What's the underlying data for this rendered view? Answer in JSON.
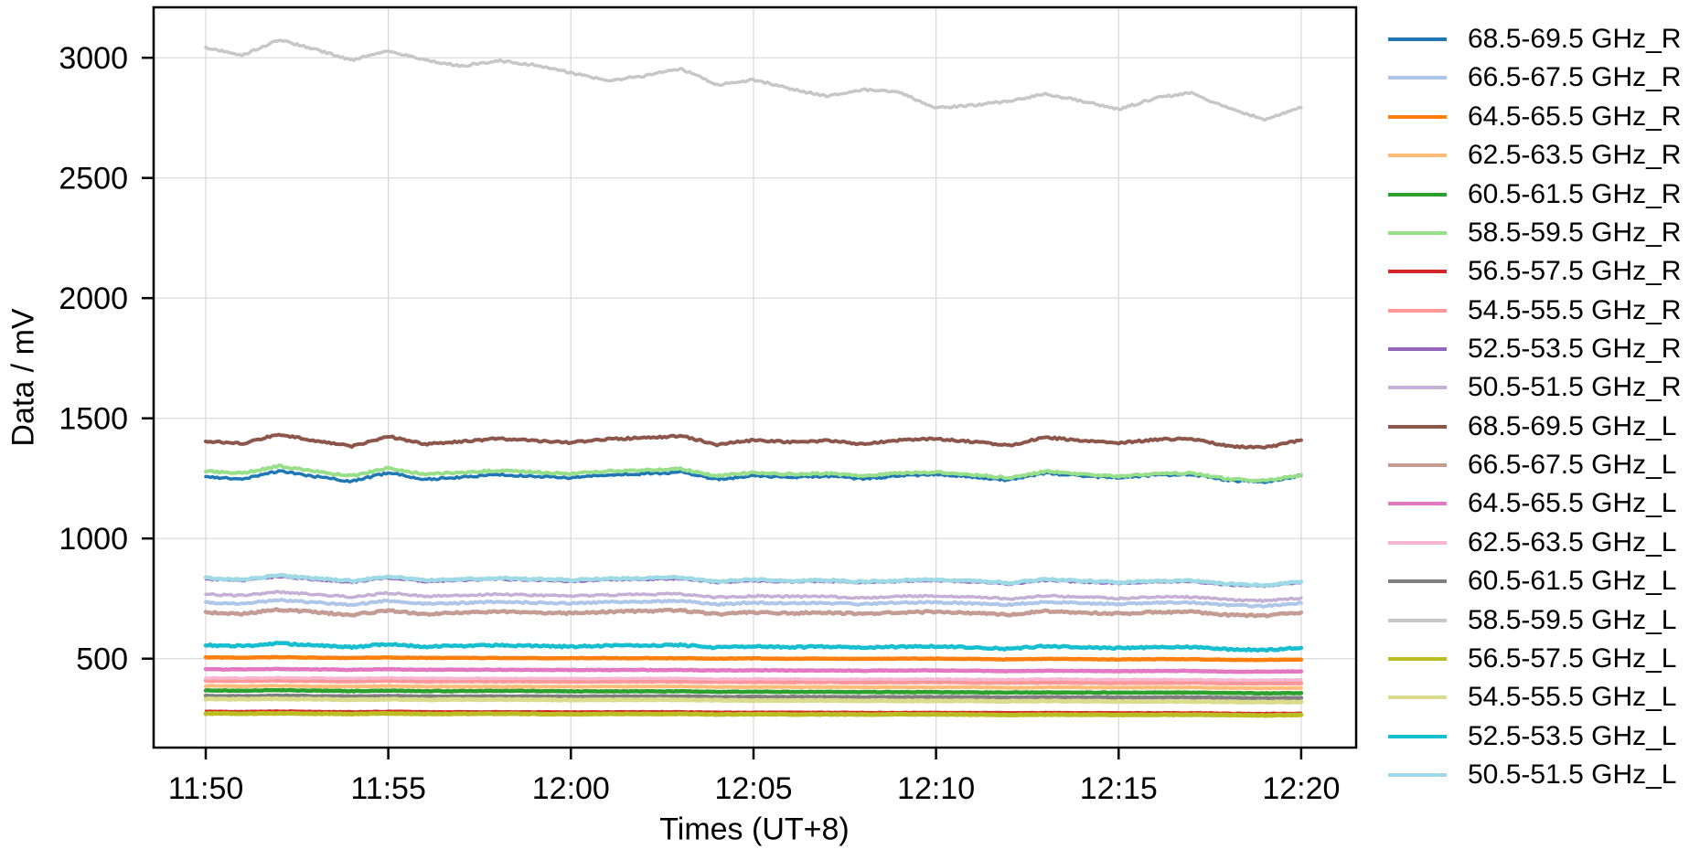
{
  "figure": {
    "background": "#ffffff",
    "axis_color": "#000000",
    "grid_color": "#d8d8d8",
    "tick_label_color": "#000000"
  },
  "chart_data": {
    "type": "line",
    "title": "",
    "xlabel": "Times (UT+8)",
    "ylabel": "Data / mV",
    "grid": true,
    "legend_position": "right-outside",
    "ylim": [
      130,
      3210
    ],
    "y_ticks": [
      500,
      1000,
      1500,
      2000,
      2500,
      3000
    ],
    "x_tick_labels": [
      "11:50",
      "11:55",
      "12:00",
      "12:05",
      "12:10",
      "12:15",
      "12:20"
    ],
    "x_times": [
      "11:50",
      "11:51",
      "11:52",
      "11:53",
      "11:54",
      "11:55",
      "11:56",
      "11:57",
      "11:58",
      "11:59",
      "12:00",
      "12:01",
      "12:02",
      "12:03",
      "12:04",
      "12:05",
      "12:06",
      "12:07",
      "12:08",
      "12:09",
      "12:10",
      "12:11",
      "12:12",
      "12:13",
      "12:14",
      "12:15",
      "12:16",
      "12:17",
      "12:18",
      "12:19",
      "12:20"
    ],
    "series": [
      {
        "name": "68.5-69.5 GHz_R",
        "color": "#1f77b4",
        "values": [
          1256,
          1248,
          1280,
          1258,
          1238,
          1274,
          1246,
          1255,
          1265,
          1259,
          1252,
          1264,
          1269,
          1276,
          1246,
          1261,
          1254,
          1259,
          1248,
          1261,
          1267,
          1256,
          1243,
          1272,
          1260,
          1252,
          1264,
          1267,
          1242,
          1235,
          1262
        ]
      },
      {
        "name": "66.5-67.5 GHz_R",
        "color": "#aec7e8",
        "values": [
          733,
          729,
          744,
          734,
          724,
          741,
          728,
          732,
          736,
          733,
          730,
          735,
          737,
          741,
          726,
          733,
          730,
          732,
          726,
          733,
          735,
          730,
          724,
          737,
          731,
          727,
          733,
          734,
          722,
          719,
          732
        ]
      },
      {
        "name": "64.5-65.5 GHz_R",
        "color": "#ff7f0e",
        "values": [
          505,
          504,
          506,
          504,
          503,
          505,
          503,
          503,
          503,
          502,
          502,
          502,
          502,
          502,
          500,
          501,
          500,
          500,
          499,
          500,
          500,
          499,
          497,
          499,
          498,
          497,
          498,
          498,
          495,
          495,
          496
        ]
      },
      {
        "name": "62.5-63.5 GHz_R",
        "color": "#ffbb78",
        "values": [
          386,
          385,
          387,
          385,
          384,
          386,
          384,
          384,
          384,
          384,
          383,
          384,
          384,
          384,
          382,
          382,
          382,
          382,
          381,
          381,
          381,
          381,
          379,
          381,
          380,
          379,
          380,
          380,
          378,
          377,
          378
        ]
      },
      {
        "name": "60.5-61.5 GHz_R",
        "color": "#2ca02c",
        "values": [
          368,
          367,
          369,
          367,
          365,
          367,
          365,
          365,
          366,
          365,
          364,
          364,
          364,
          364,
          362,
          363,
          362,
          362,
          361,
          361,
          361,
          360,
          359,
          360,
          359,
          359,
          359,
          359,
          357,
          356,
          357
        ]
      },
      {
        "name": "58.5-59.5 GHz_R",
        "color": "#98df8a",
        "values": [
          1280,
          1271,
          1301,
          1280,
          1260,
          1293,
          1267,
          1274,
          1283,
          1276,
          1269,
          1280,
          1284,
          1290,
          1260,
          1274,
          1267,
          1271,
          1260,
          1272,
          1276,
          1266,
          1252,
          1279,
          1267,
          1259,
          1269,
          1272,
          1247,
          1240,
          1265
        ]
      },
      {
        "name": "56.5-57.5 GHz_R",
        "color": "#d62728",
        "values": [
          283,
          282,
          284,
          282,
          281,
          283,
          281,
          281,
          281,
          281,
          280,
          281,
          281,
          281,
          279,
          279,
          279,
          279,
          278,
          278,
          278,
          278,
          277,
          278,
          277,
          277,
          277,
          277,
          275,
          274,
          275
        ]
      },
      {
        "name": "54.5-55.5 GHz_R",
        "color": "#ff9896",
        "values": [
          408,
          407,
          409,
          407,
          405,
          408,
          405,
          406,
          406,
          405,
          404,
          405,
          405,
          405,
          403,
          403,
          402,
          403,
          401,
          402,
          402,
          401,
          400,
          401,
          400,
          399,
          400,
          400,
          398,
          397,
          398
        ]
      },
      {
        "name": "52.5-53.5 GHz_R",
        "color": "#9467bd",
        "values": [
          828,
          823,
          840,
          827,
          816,
          835,
          820,
          824,
          829,
          824,
          820,
          826,
          828,
          831,
          815,
          822,
          818,
          820,
          814,
          820,
          823,
          817,
          809,
          824,
          817,
          812,
          817,
          819,
          805,
          801,
          815
        ]
      },
      {
        "name": "50.5-51.5 GHz_R",
        "color": "#c5b0d5",
        "values": [
          768,
          763,
          778,
          767,
          757,
          773,
          760,
          763,
          768,
          764,
          760,
          765,
          767,
          770,
          755,
          761,
          758,
          759,
          753,
          759,
          761,
          756,
          749,
          762,
          756,
          751,
          756,
          757,
          745,
          741,
          753
        ]
      },
      {
        "name": "68.5-69.5 GHz_L",
        "color": "#8c564b",
        "values": [
          1405,
          1395,
          1433,
          1407,
          1383,
          1425,
          1393,
          1403,
          1415,
          1407,
          1399,
          1413,
          1419,
          1427,
          1391,
          1409,
          1401,
          1407,
          1393,
          1409,
          1415,
          1403,
          1387,
          1421,
          1407,
          1397,
          1411,
          1415,
          1385,
          1377,
          1409
        ]
      },
      {
        "name": "66.5-67.5 GHz_L",
        "color": "#c49c94",
        "values": [
          692,
          687,
          704,
          693,
          682,
          701,
          686,
          691,
          696,
          692,
          689,
          695,
          698,
          701,
          685,
          693,
          689,
          692,
          686,
          693,
          695,
          690,
          683,
          698,
          692,
          687,
          693,
          695,
          682,
          679,
          692
        ]
      },
      {
        "name": "64.5-65.5 GHz_L",
        "color": "#e377c2",
        "values": [
          456,
          455,
          457,
          455,
          454,
          456,
          454,
          454,
          454,
          453,
          453,
          453,
          453,
          453,
          451,
          452,
          451,
          451,
          450,
          451,
          451,
          450,
          448,
          450,
          449,
          448,
          449,
          449,
          446,
          446,
          447
        ]
      },
      {
        "name": "62.5-63.5 GHz_L",
        "color": "#f7b6d2",
        "values": [
          420,
          419,
          421,
          419,
          418,
          420,
          418,
          418,
          418,
          418,
          417,
          417,
          418,
          418,
          415,
          416,
          415,
          415,
          414,
          415,
          415,
          414,
          413,
          415,
          414,
          413,
          413,
          413,
          411,
          410,
          412
        ]
      },
      {
        "name": "60.5-61.5 GHz_L",
        "color": "#7f7f7f",
        "values": [
          345,
          344,
          346,
          344,
          343,
          345,
          343,
          343,
          343,
          343,
          342,
          343,
          343,
          343,
          341,
          341,
          341,
          341,
          340,
          340,
          340,
          340,
          338,
          340,
          339,
          338,
          339,
          339,
          337,
          336,
          337
        ]
      },
      {
        "name": "58.5-59.5 GHz_L",
        "color": "#c7c7c7",
        "values": [
          3043,
          3012,
          3075,
          3035,
          2990,
          3030,
          2990,
          2966,
          2988,
          2970,
          2938,
          2905,
          2925,
          2955,
          2888,
          2908,
          2872,
          2840,
          2868,
          2855,
          2792,
          2802,
          2820,
          2850,
          2820,
          2785,
          2832,
          2855,
          2790,
          2745,
          2792
        ]
      },
      {
        "name": "56.5-57.5 GHz_L",
        "color": "#bcbd22",
        "values": [
          272,
          271,
          273,
          271,
          270,
          272,
          270,
          270,
          271,
          270,
          269,
          270,
          270,
          270,
          268,
          269,
          268,
          268,
          267,
          268,
          268,
          267,
          266,
          267,
          267,
          266,
          266,
          267,
          265,
          264,
          266
        ]
      },
      {
        "name": "54.5-55.5 GHz_L",
        "color": "#dbdb8d",
        "values": [
          332,
          331,
          333,
          331,
          329,
          331,
          329,
          330,
          330,
          329,
          328,
          329,
          329,
          329,
          327,
          326,
          326,
          326,
          325,
          325,
          324,
          324,
          323,
          324,
          323,
          322,
          322,
          322,
          320,
          319,
          320
        ]
      },
      {
        "name": "52.5-53.5 GHz_L",
        "color": "#17becf",
        "values": [
          556,
          553,
          564,
          555,
          548,
          560,
          550,
          553,
          556,
          553,
          550,
          554,
          555,
          557,
          546,
          551,
          548,
          550,
          545,
          550,
          551,
          547,
          541,
          552,
          547,
          544,
          547,
          548,
          539,
          536,
          545
        ]
      },
      {
        "name": "50.5-51.5 GHz_L",
        "color": "#9edae5",
        "values": [
          835,
          830,
          846,
          834,
          823,
          841,
          826,
          830,
          835,
          831,
          827,
          833,
          835,
          838,
          821,
          829,
          824,
          827,
          820,
          826,
          828,
          823,
          815,
          830,
          823,
          818,
          823,
          825,
          811,
          806,
          820
        ]
      }
    ]
  }
}
